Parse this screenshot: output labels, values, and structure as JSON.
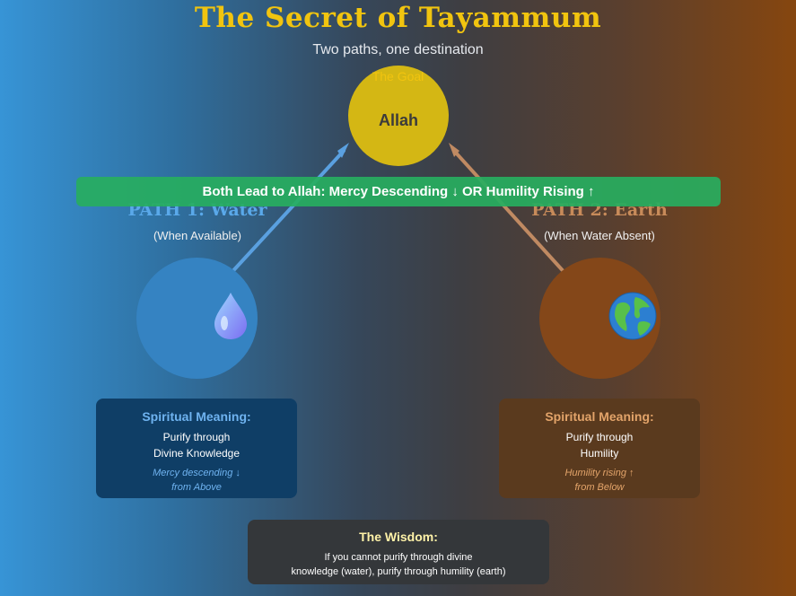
{
  "header": {
    "title": "The Secret of Tayammum",
    "subtitle": "Two paths, one destination"
  },
  "goal": {
    "label": "The Goal",
    "name": "Allah"
  },
  "banner": {
    "text": "Both Lead to Allah: Mercy Descending ↓ OR Humility Rising ↑"
  },
  "paths": {
    "water": {
      "title": "PATH 1: Water",
      "subtitle": "(When Available)",
      "icon": "water-drop-icon",
      "card": {
        "heading": "Spiritual Meaning:",
        "line1": "Purify through",
        "line2": "Divine Knowledge",
        "note1": "Mercy descending ↓",
        "note2": "from Above"
      }
    },
    "earth": {
      "title": "PATH 2: Earth",
      "subtitle": "(When Water Absent)",
      "icon": "globe-icon",
      "card": {
        "heading": "Spiritual Meaning:",
        "line1": "Purify through",
        "line2": "Humility",
        "note1": "Humility rising ↑",
        "note2": "from Below"
      }
    }
  },
  "wisdom": {
    "heading": "The Wisdom:",
    "line1": "If you cannot purify through divine",
    "line2": "knowledge (water), purify through humility (earth)"
  },
  "colors": {
    "gold": "#f1c40f",
    "green": "#27ae60",
    "water_blue": "#3583c2",
    "earth_brown": "#844719"
  }
}
